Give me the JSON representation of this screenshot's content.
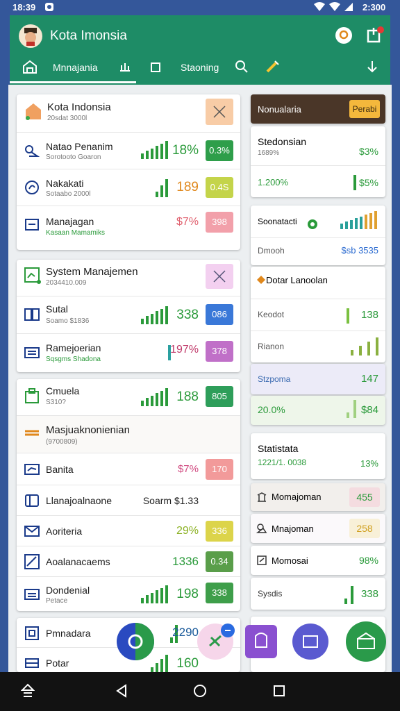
{
  "status_bar": {
    "time": "18:39",
    "right": "2:300"
  },
  "app_bar": {
    "title": "Kota Imonsia"
  },
  "tabs": [
    "Mnnajania",
    "Staoning"
  ],
  "left": {
    "card1": {
      "title": "Kota Indonsia",
      "subtitle": "20sdat 3000l",
      "rows": [
        {
          "title": "Natao Penanim",
          "subtitle": "Sorotooto Goaron",
          "value": "18%",
          "badge": "0.3%"
        },
        {
          "title": "Nakakati",
          "subtitle": "Sotaabo 2000l",
          "value": "189",
          "badge": "0.4S"
        },
        {
          "title": "Manajagan",
          "subtitle": "Kasaan Mamamiks",
          "value": "$7%",
          "badge": "398"
        }
      ]
    },
    "card2": {
      "title": "System Manajemen",
      "subtitle": "2034410.009",
      "rows": [
        {
          "title": "Sutal",
          "subtitle": "Soamo $1836",
          "value": "338",
          "badge": "086"
        },
        {
          "title": "Ramejoerian",
          "subtitle": "Sqsgms Shadona",
          "value": "197%",
          "badge": "378"
        }
      ]
    },
    "card3": {
      "rows": [
        {
          "title": "Cmuela",
          "subtitle": "S310?",
          "value": "188",
          "badge": "805"
        },
        {
          "title": "Masjuaknonienian",
          "subtitle": "(9700809)"
        },
        {
          "title": "Banita",
          "value": "$7%",
          "badge": "170"
        },
        {
          "title": "Llanajoalnaone",
          "value": "Soarm $1.33"
        },
        {
          "title": "Aoriteria",
          "value": "29%",
          "badge": "336"
        },
        {
          "title": "Aoalanacaems",
          "value": "1336",
          "badge": "0.34"
        },
        {
          "title": "Dondenial",
          "subtitle": "Petace",
          "value": "198",
          "badge": "338"
        }
      ]
    },
    "card4": {
      "rows": [
        {
          "title": "Pmnadara",
          "value": "2290"
        },
        {
          "title": "Potar",
          "value": "160"
        }
      ]
    }
  },
  "right": {
    "header": {
      "title": "Nonualaria",
      "button": "Perabi"
    },
    "card1": {
      "title": "Stedonsian",
      "subtitle": "1689%",
      "value": "$3%",
      "row_label": "1.200%",
      "row_value": "$5%"
    },
    "card2": {
      "title": "Soonatacti",
      "row_label": "Dmooh",
      "row_value": "$sb 3535"
    },
    "card3": {
      "title": "Dotar Lanoolan",
      "rows": [
        {
          "title": "Keodot",
          "value": "138"
        },
        {
          "title": "Rianon"
        }
      ]
    },
    "band1": {
      "title": "Stzpoma",
      "value": "147"
    },
    "band2": {
      "title": "20.0%",
      "value": "$84"
    },
    "card4": {
      "title": "Statistata",
      "subtitle": "1221/1. 0038",
      "value": "13%"
    },
    "rows": [
      {
        "title": "Momajoman",
        "value": "455"
      },
      {
        "title": "Mnajoman",
        "value": "258"
      },
      {
        "title": "Momosai",
        "value": "98%"
      },
      {
        "title": "Sysdis",
        "value": "338"
      }
    ]
  }
}
